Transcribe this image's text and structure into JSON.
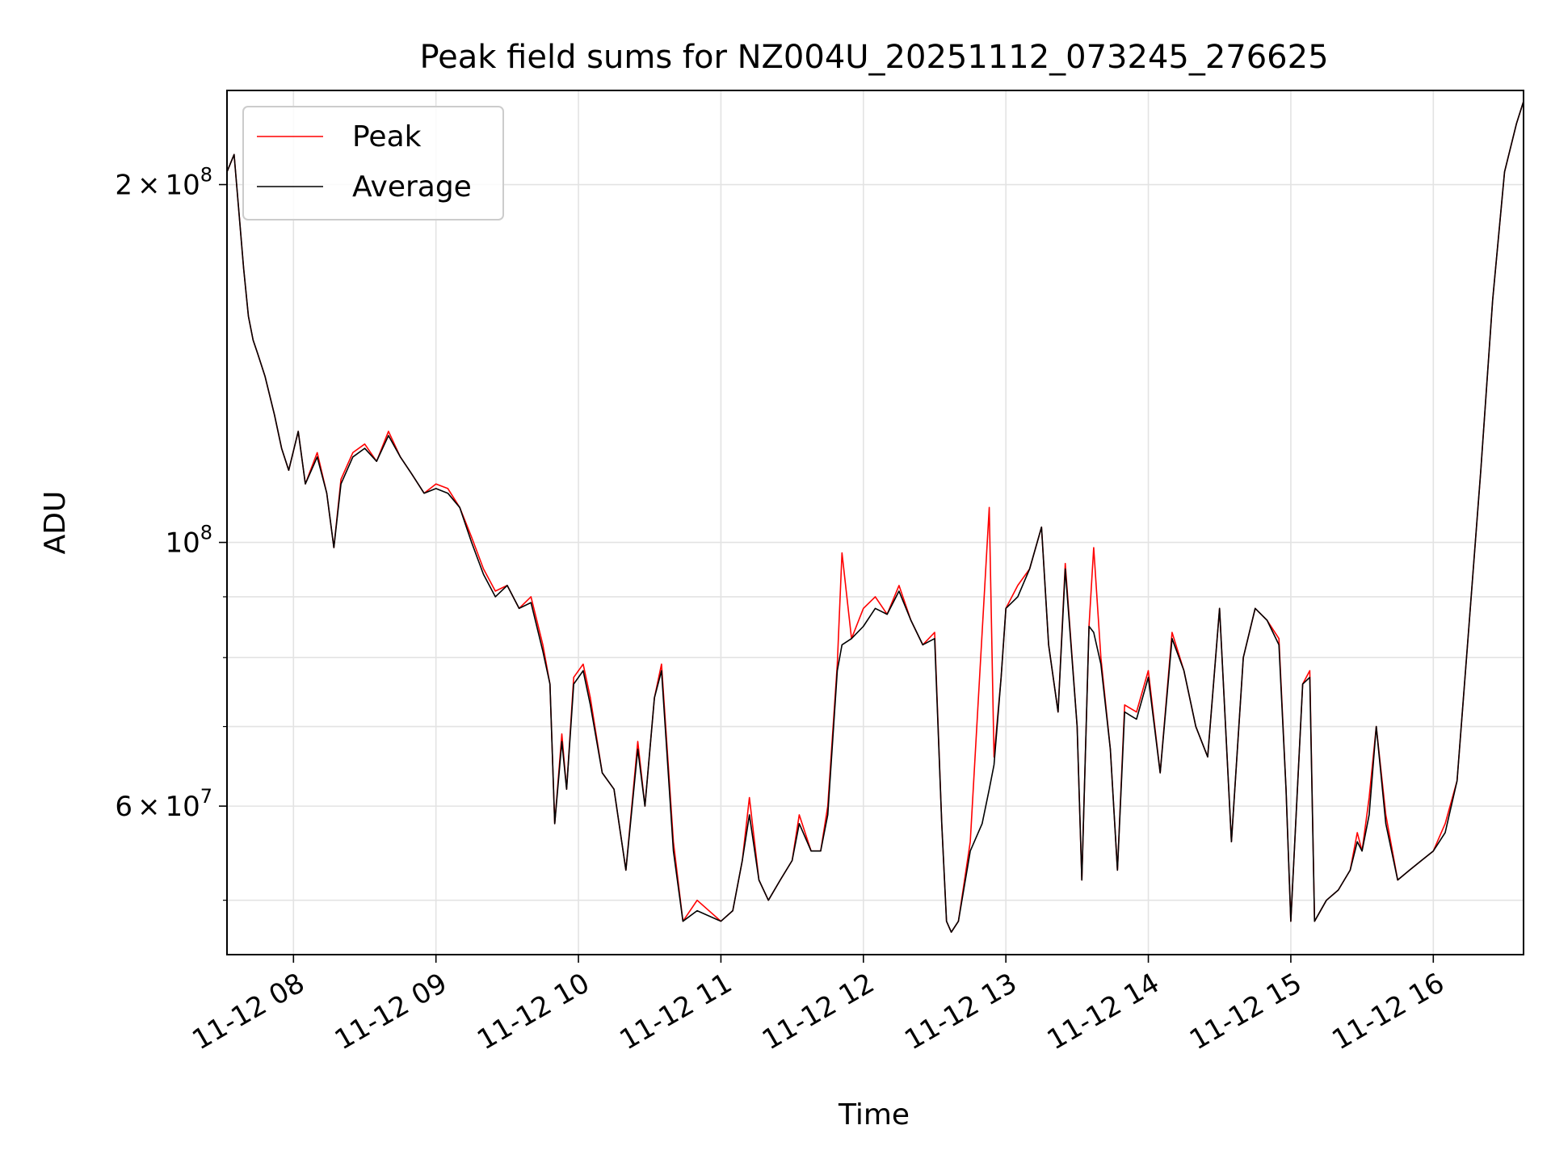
{
  "chart_data": {
    "type": "line",
    "title": "Peak field sums for NZ004U_20251112_073245_276625",
    "xlabel": "Time",
    "ylabel": "ADU",
    "x_scale": "time",
    "y_scale": "log",
    "xlim": [
      "2025-11-12 07:32",
      "2025-11-12 16:38"
    ],
    "ylim": [
      45000000,
      240000000
    ],
    "grid": true,
    "legend_position": "upper-left",
    "x_ticks": [
      {
        "t": "2025-11-12 08:00",
        "label": "11-12 08"
      },
      {
        "t": "2025-11-12 09:00",
        "label": "11-12 09"
      },
      {
        "t": "2025-11-12 10:00",
        "label": "11-12 10"
      },
      {
        "t": "2025-11-12 11:00",
        "label": "11-12 11"
      },
      {
        "t": "2025-11-12 12:00",
        "label": "11-12 12"
      },
      {
        "t": "2025-11-12 13:00",
        "label": "11-12 13"
      },
      {
        "t": "2025-11-12 14:00",
        "label": "11-12 14"
      },
      {
        "t": "2025-11-12 15:00",
        "label": "11-12 15"
      },
      {
        "t": "2025-11-12 16:00",
        "label": "11-12 16"
      }
    ],
    "y_ticks": [
      {
        "value": 200000000,
        "mantissa": "2",
        "exponent": "8",
        "times": "×"
      },
      {
        "value": 100000000,
        "mantissa": "",
        "exponent": "8",
        "times": ""
      },
      {
        "value": 60000000,
        "mantissa": "6",
        "exponent": "7",
        "times": "×"
      }
    ],
    "y_minor_ticks": [
      50000000,
      70000000,
      80000000,
      90000000
    ],
    "series": [
      {
        "name": "Peak",
        "color": "#ff0000",
        "x": [
          "2025-11-12 07:32",
          "2025-11-12 07:35",
          "2025-11-12 07:39",
          "2025-11-12 07:41",
          "2025-11-12 07:43",
          "2025-11-12 07:45",
          "2025-11-12 07:48",
          "2025-11-12 07:52",
          "2025-11-12 07:55",
          "2025-11-12 07:58",
          "2025-11-12 08:02",
          "2025-11-12 08:05",
          "2025-11-12 08:10",
          "2025-11-12 08:14",
          "2025-11-12 08:17",
          "2025-11-12 08:20",
          "2025-11-12 08:25",
          "2025-11-12 08:30",
          "2025-11-12 08:35",
          "2025-11-12 08:40",
          "2025-11-12 08:45",
          "2025-11-12 08:50",
          "2025-11-12 08:55",
          "2025-11-12 09:00",
          "2025-11-12 09:05",
          "2025-11-12 09:10",
          "2025-11-12 09:15",
          "2025-11-12 09:20",
          "2025-11-12 09:25",
          "2025-11-12 09:30",
          "2025-11-12 09:35",
          "2025-11-12 09:40",
          "2025-11-12 09:45",
          "2025-11-12 09:48",
          "2025-11-12 09:50",
          "2025-11-12 09:53",
          "2025-11-12 09:55",
          "2025-11-12 09:58",
          "2025-11-12 10:02",
          "2025-11-12 10:05",
          "2025-11-12 10:10",
          "2025-11-12 10:15",
          "2025-11-12 10:20",
          "2025-11-12 10:25",
          "2025-11-12 10:28",
          "2025-11-12 10:32",
          "2025-11-12 10:35",
          "2025-11-12 10:40",
          "2025-11-12 10:44",
          "2025-11-12 10:50",
          "2025-11-12 11:00",
          "2025-11-12 11:05",
          "2025-11-12 11:09",
          "2025-11-12 11:12",
          "2025-11-12 11:16",
          "2025-11-12 11:20",
          "2025-11-12 11:25",
          "2025-11-12 11:30",
          "2025-11-12 11:33",
          "2025-11-12 11:38",
          "2025-11-12 11:42",
          "2025-11-12 11:45",
          "2025-11-12 11:49",
          "2025-11-12 11:51",
          "2025-11-12 11:55",
          "2025-11-12 12:00",
          "2025-11-12 12:05",
          "2025-11-12 12:10",
          "2025-11-12 12:15",
          "2025-11-12 12:20",
          "2025-11-12 12:25",
          "2025-11-12 12:30",
          "2025-11-12 12:33",
          "2025-11-12 12:35",
          "2025-11-12 12:37",
          "2025-11-12 12:40",
          "2025-11-12 12:45",
          "2025-11-12 12:50",
          "2025-11-12 12:53",
          "2025-11-12 12:55",
          "2025-11-12 12:58",
          "2025-11-12 13:00",
          "2025-11-12 13:05",
          "2025-11-12 13:10",
          "2025-11-12 13:15",
          "2025-11-12 13:18",
          "2025-11-12 13:22",
          "2025-11-12 13:25",
          "2025-11-12 13:30",
          "2025-11-12 13:32",
          "2025-11-12 13:35",
          "2025-11-12 13:37",
          "2025-11-12 13:40",
          "2025-11-12 13:44",
          "2025-11-12 13:47",
          "2025-11-12 13:50",
          "2025-11-12 13:55",
          "2025-11-12 14:00",
          "2025-11-12 14:05",
          "2025-11-12 14:10",
          "2025-11-12 14:15",
          "2025-11-12 14:20",
          "2025-11-12 14:25",
          "2025-11-12 14:30",
          "2025-11-12 14:35",
          "2025-11-12 14:40",
          "2025-11-12 14:45",
          "2025-11-12 14:50",
          "2025-11-12 14:55",
          "2025-11-12 14:58",
          "2025-11-12 15:00",
          "2025-11-12 15:05",
          "2025-11-12 15:08",
          "2025-11-12 15:10",
          "2025-11-12 15:15",
          "2025-11-12 15:20",
          "2025-11-12 15:25",
          "2025-11-12 15:28",
          "2025-11-12 15:30",
          "2025-11-12 15:33",
          "2025-11-12 15:36",
          "2025-11-12 15:40",
          "2025-11-12 15:45",
          "2025-11-12 15:50",
          "2025-11-12 15:55",
          "2025-11-12 16:00",
          "2025-11-12 16:05",
          "2025-11-12 16:10",
          "2025-11-12 16:15",
          "2025-11-12 16:20",
          "2025-11-12 16:25",
          "2025-11-12 16:30",
          "2025-11-12 16:35",
          "2025-11-12 16:38"
        ],
        "values": [
          205000000,
          212000000,
          170000000,
          155000000,
          148000000,
          144000000,
          138000000,
          128000000,
          120000000,
          115000000,
          124000000,
          112000000,
          119000000,
          110000000,
          99000000,
          113000000,
          119000000,
          121000000,
          117000000,
          124000000,
          118000000,
          114000000,
          110000000,
          112000000,
          111000000,
          107000000,
          101000000,
          95000000,
          91000000,
          92000000,
          88000000,
          90000000,
          82000000,
          76000000,
          58000000,
          69000000,
          62000000,
          77000000,
          79000000,
          74000000,
          64000000,
          62000000,
          53000000,
          68000000,
          60000000,
          74000000,
          79000000,
          56000000,
          48000000,
          50000000,
          48000000,
          49000000,
          54000000,
          61000000,
          52000000,
          50000000,
          52000000,
          54000000,
          59000000,
          55000000,
          55000000,
          60000000,
          79000000,
          98000000,
          83000000,
          88000000,
          90000000,
          87000000,
          92000000,
          86000000,
          82000000,
          84000000,
          58000000,
          48000000,
          47000000,
          48000000,
          56000000,
          84000000,
          107000000,
          66000000,
          77000000,
          88000000,
          92000000,
          95000000,
          103000000,
          82000000,
          72000000,
          96000000,
          70000000,
          52000000,
          85000000,
          99000000,
          80000000,
          67000000,
          53000000,
          73000000,
          72000000,
          78000000,
          64000000,
          84000000,
          78000000,
          70000000,
          66000000,
          88000000,
          56000000,
          80000000,
          88000000,
          86000000,
          83000000,
          62000000,
          48000000,
          76000000,
          78000000,
          48000000,
          50000000,
          51000000,
          53000000,
          57000000,
          55000000,
          61000000,
          70000000,
          59000000,
          52000000,
          53000000,
          54000000,
          55000000,
          58000000,
          63000000,
          85000000,
          115000000,
          160000000,
          205000000,
          225000000,
          235000000
        ]
      },
      {
        "name": "Average",
        "color": "#000000",
        "x": [
          "2025-11-12 07:32",
          "2025-11-12 07:35",
          "2025-11-12 07:39",
          "2025-11-12 07:41",
          "2025-11-12 07:43",
          "2025-11-12 07:45",
          "2025-11-12 07:48",
          "2025-11-12 07:52",
          "2025-11-12 07:55",
          "2025-11-12 07:58",
          "2025-11-12 08:02",
          "2025-11-12 08:05",
          "2025-11-12 08:10",
          "2025-11-12 08:14",
          "2025-11-12 08:17",
          "2025-11-12 08:20",
          "2025-11-12 08:25",
          "2025-11-12 08:30",
          "2025-11-12 08:35",
          "2025-11-12 08:40",
          "2025-11-12 08:45",
          "2025-11-12 08:50",
          "2025-11-12 08:55",
          "2025-11-12 09:00",
          "2025-11-12 09:05",
          "2025-11-12 09:10",
          "2025-11-12 09:15",
          "2025-11-12 09:20",
          "2025-11-12 09:25",
          "2025-11-12 09:30",
          "2025-11-12 09:35",
          "2025-11-12 09:40",
          "2025-11-12 09:45",
          "2025-11-12 09:48",
          "2025-11-12 09:50",
          "2025-11-12 09:53",
          "2025-11-12 09:55",
          "2025-11-12 09:58",
          "2025-11-12 10:02",
          "2025-11-12 10:05",
          "2025-11-12 10:10",
          "2025-11-12 10:15",
          "2025-11-12 10:20",
          "2025-11-12 10:25",
          "2025-11-12 10:28",
          "2025-11-12 10:32",
          "2025-11-12 10:35",
          "2025-11-12 10:40",
          "2025-11-12 10:44",
          "2025-11-12 10:50",
          "2025-11-12 11:00",
          "2025-11-12 11:05",
          "2025-11-12 11:09",
          "2025-11-12 11:12",
          "2025-11-12 11:16",
          "2025-11-12 11:20",
          "2025-11-12 11:25",
          "2025-11-12 11:30",
          "2025-11-12 11:33",
          "2025-11-12 11:38",
          "2025-11-12 11:42",
          "2025-11-12 11:45",
          "2025-11-12 11:49",
          "2025-11-12 11:51",
          "2025-11-12 11:55",
          "2025-11-12 12:00",
          "2025-11-12 12:05",
          "2025-11-12 12:10",
          "2025-11-12 12:15",
          "2025-11-12 12:20",
          "2025-11-12 12:25",
          "2025-11-12 12:30",
          "2025-11-12 12:33",
          "2025-11-12 12:35",
          "2025-11-12 12:37",
          "2025-11-12 12:40",
          "2025-11-12 12:45",
          "2025-11-12 12:50",
          "2025-11-12 12:53",
          "2025-11-12 12:55",
          "2025-11-12 12:58",
          "2025-11-12 13:00",
          "2025-11-12 13:05",
          "2025-11-12 13:10",
          "2025-11-12 13:15",
          "2025-11-12 13:18",
          "2025-11-12 13:22",
          "2025-11-12 13:25",
          "2025-11-12 13:30",
          "2025-11-12 13:32",
          "2025-11-12 13:35",
          "2025-11-12 13:37",
          "2025-11-12 13:40",
          "2025-11-12 13:44",
          "2025-11-12 13:47",
          "2025-11-12 13:50",
          "2025-11-12 13:55",
          "2025-11-12 14:00",
          "2025-11-12 14:05",
          "2025-11-12 14:10",
          "2025-11-12 14:15",
          "2025-11-12 14:20",
          "2025-11-12 14:25",
          "2025-11-12 14:30",
          "2025-11-12 14:35",
          "2025-11-12 14:40",
          "2025-11-12 14:45",
          "2025-11-12 14:50",
          "2025-11-12 14:55",
          "2025-11-12 14:58",
          "2025-11-12 15:00",
          "2025-11-12 15:05",
          "2025-11-12 15:08",
          "2025-11-12 15:10",
          "2025-11-12 15:15",
          "2025-11-12 15:20",
          "2025-11-12 15:25",
          "2025-11-12 15:28",
          "2025-11-12 15:30",
          "2025-11-12 15:33",
          "2025-11-12 15:36",
          "2025-11-12 15:40",
          "2025-11-12 15:45",
          "2025-11-12 15:50",
          "2025-11-12 15:55",
          "2025-11-12 16:00",
          "2025-11-12 16:05",
          "2025-11-12 16:10",
          "2025-11-12 16:15",
          "2025-11-12 16:20",
          "2025-11-12 16:25",
          "2025-11-12 16:30",
          "2025-11-12 16:35",
          "2025-11-12 16:38"
        ],
        "values": [
          205000000,
          212000000,
          170000000,
          155000000,
          148000000,
          144000000,
          138000000,
          128000000,
          120000000,
          115000000,
          124000000,
          112000000,
          118000000,
          110000000,
          99000000,
          112000000,
          118000000,
          120000000,
          117000000,
          123000000,
          118000000,
          114000000,
          110000000,
          111000000,
          110000000,
          107000000,
          100000000,
          94000000,
          90000000,
          92000000,
          88000000,
          89000000,
          81000000,
          76000000,
          58000000,
          68000000,
          62000000,
          76000000,
          78000000,
          73000000,
          64000000,
          62000000,
          53000000,
          67000000,
          60000000,
          74000000,
          78000000,
          55000000,
          48000000,
          49000000,
          48000000,
          49000000,
          54000000,
          59000000,
          52000000,
          50000000,
          52000000,
          54000000,
          58000000,
          55000000,
          55000000,
          59000000,
          78000000,
          82000000,
          83000000,
          85000000,
          88000000,
          87000000,
          91000000,
          86000000,
          82000000,
          83000000,
          58000000,
          48000000,
          47000000,
          48000000,
          55000000,
          58000000,
          62000000,
          65000000,
          77000000,
          88000000,
          90000000,
          95000000,
          103000000,
          82000000,
          72000000,
          95000000,
          70000000,
          52000000,
          85000000,
          84000000,
          79000000,
          67000000,
          53000000,
          72000000,
          71000000,
          77000000,
          64000000,
          83000000,
          78000000,
          70000000,
          66000000,
          88000000,
          56000000,
          80000000,
          88000000,
          86000000,
          82000000,
          62000000,
          48000000,
          76000000,
          77000000,
          48000000,
          50000000,
          51000000,
          53000000,
          56000000,
          55000000,
          59000000,
          70000000,
          58000000,
          52000000,
          53000000,
          54000000,
          55000000,
          57000000,
          63000000,
          85000000,
          115000000,
          160000000,
          205000000,
          225000000,
          235000000
        ]
      }
    ],
    "legend": [
      {
        "label": "Peak",
        "color": "#ff0000"
      },
      {
        "label": "Average",
        "color": "#000000"
      }
    ]
  }
}
